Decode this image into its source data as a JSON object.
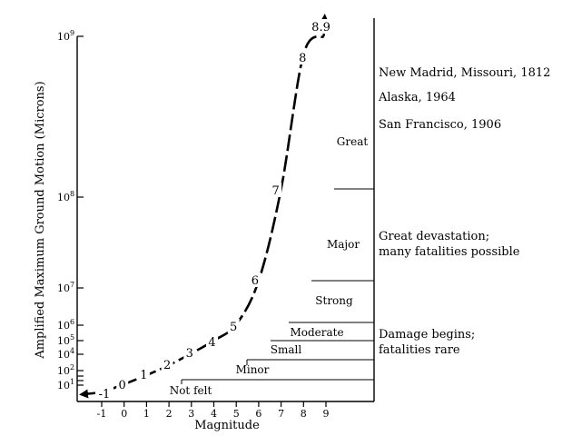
{
  "chart_data": {
    "type": "line",
    "title": "",
    "xlabel": "Magnitude",
    "ylabel": "Amplified Maximum Ground Motion (Microns)",
    "x_ticks": [
      "-1",
      "0",
      "1",
      "2",
      "3",
      "4",
      "5",
      "6",
      "7",
      "8",
      "9"
    ],
    "y_ticks": [
      {
        "base": "10",
        "exp": "1"
      },
      {
        "base": "10",
        "exp": "2"
      },
      {
        "base": "10",
        "exp": "4"
      },
      {
        "base": "10",
        "exp": "5"
      },
      {
        "base": "10",
        "exp": "6"
      },
      {
        "base": "10",
        "exp": "7"
      },
      {
        "base": "10",
        "exp": "8"
      },
      {
        "base": "10",
        "exp": "9"
      }
    ],
    "curve": {
      "points": [
        {
          "label": "-1",
          "x": -1,
          "y": 1
        },
        {
          "label": "0",
          "x": 0,
          "y": 10
        },
        {
          "label": "1",
          "x": 1,
          "y": 100
        },
        {
          "label": "2",
          "x": 2,
          "y": 1000
        },
        {
          "label": "3",
          "x": 3,
          "y": 10000
        },
        {
          "label": "4",
          "x": 4,
          "y": 100000
        },
        {
          "label": "5",
          "x": 5,
          "y": 1000000
        },
        {
          "label": "6",
          "x": 6,
          "y": 10000000
        },
        {
          "label": "7",
          "x": 7,
          "y": 100000000
        },
        {
          "label": "8",
          "x": 8,
          "y": 1000000000
        },
        {
          "label": "8.9",
          "x": 8.9,
          "y": 8000000000
        }
      ]
    },
    "bands": [
      {
        "label": "Not felt",
        "from_magnitude": -1,
        "to_magnitude": 2
      },
      {
        "label": "Minor",
        "from_magnitude": 2,
        "to_magnitude": 4
      },
      {
        "label": "Small",
        "from_magnitude": 4,
        "to_magnitude": 5
      },
      {
        "label": "Moderate",
        "from_magnitude": 5,
        "to_magnitude": 6
      },
      {
        "label": "Strong",
        "from_magnitude": 6,
        "to_magnitude": 7
      },
      {
        "label": "Major",
        "from_magnitude": 7,
        "to_magnitude": 8
      },
      {
        "label": "Great",
        "from_magnitude": 8,
        "to_magnitude": 8.9
      }
    ],
    "annotations": {
      "events": [
        "New Madrid, Missouri, 1812",
        "Alaska, 1964",
        "San Francisco, 1906"
      ],
      "great_devastation": [
        "Great devastation;",
        "many fatalities possible"
      ],
      "damage_begins": [
        "Damage begins;",
        "fatalities rare"
      ]
    }
  }
}
